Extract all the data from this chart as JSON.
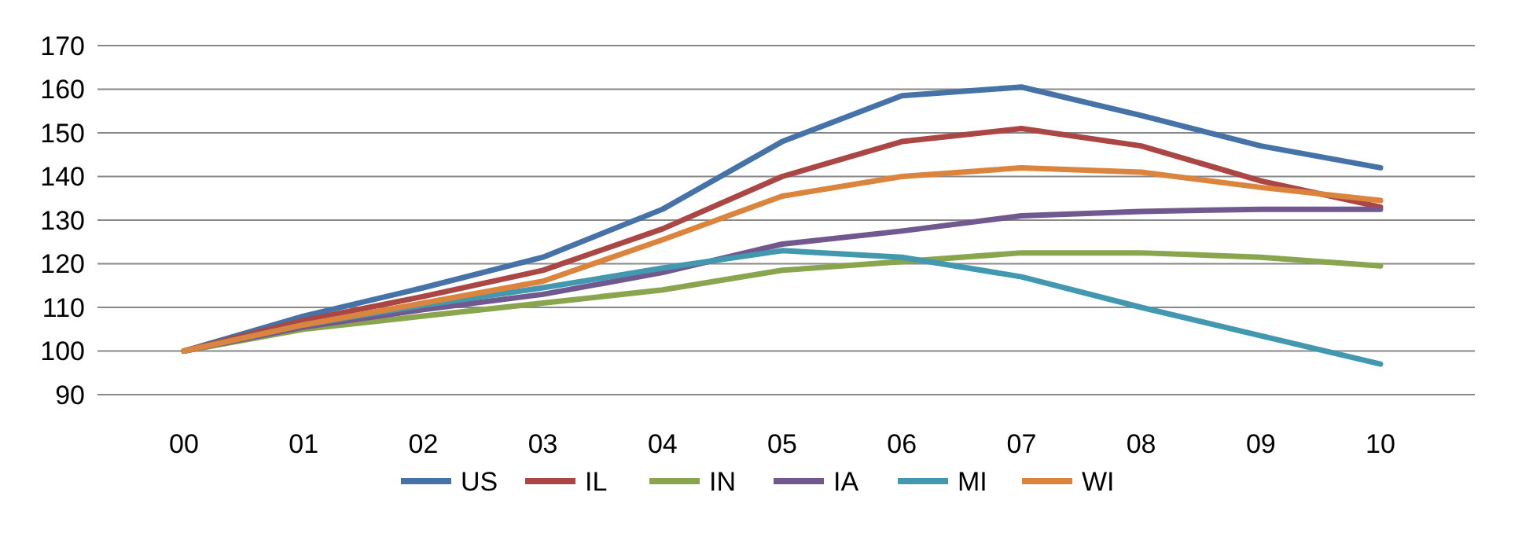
{
  "chart_data": {
    "type": "line",
    "categories": [
      "00",
      "01",
      "02",
      "03",
      "04",
      "05",
      "06",
      "07",
      "08",
      "09",
      "10"
    ],
    "series": [
      {
        "name": "US",
        "color": "#4572a7",
        "values": [
          100,
          108,
          114.5,
          121.5,
          132.5,
          148,
          158.5,
          160.5,
          154,
          147,
          142
        ]
      },
      {
        "name": "IL",
        "color": "#aa4643",
        "values": [
          100,
          107,
          112.5,
          118.5,
          128,
          140,
          148,
          151,
          147,
          139,
          133
        ]
      },
      {
        "name": "IN",
        "color": "#89a54e",
        "values": [
          100,
          105,
          108,
          111,
          114,
          118.5,
          120.5,
          122.5,
          122.5,
          121.5,
          119.5
        ]
      },
      {
        "name": "IA",
        "color": "#71588f",
        "values": [
          100,
          105.5,
          109.5,
          113,
          118,
          124.5,
          127.5,
          131,
          132,
          132.5,
          132.5
        ]
      },
      {
        "name": "MI",
        "color": "#4198af",
        "values": [
          100,
          106,
          110.5,
          114.5,
          119,
          123,
          121.5,
          117,
          110,
          103.5,
          97
        ]
      },
      {
        "name": "WI",
        "color": "#db843d",
        "values": [
          100,
          106,
          111,
          116,
          125.5,
          135.5,
          140,
          142,
          141,
          137.5,
          134.5
        ]
      }
    ],
    "ylim": [
      90,
      170
    ],
    "yticks": [
      90,
      100,
      110,
      120,
      130,
      140,
      150,
      160,
      170
    ],
    "grid": "y",
    "legend": "bottom",
    "marker": "none",
    "line_style": "solid"
  }
}
